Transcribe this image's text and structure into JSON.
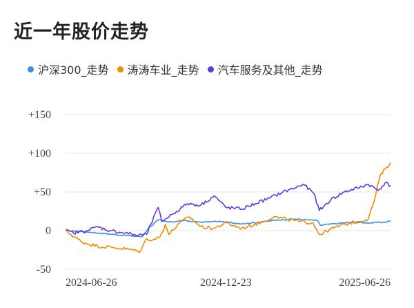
{
  "chart_data": {
    "type": "line",
    "title": "近一年股价走势",
    "legend_position": "top-left",
    "grid": true,
    "ylim": [
      -50,
      150
    ],
    "y_ticks": [
      "+150",
      "+100",
      "+50",
      "0",
      "-50"
    ],
    "y_tick_values": [
      150,
      100,
      50,
      0,
      -50
    ],
    "x_range": [
      "2024-06-26",
      "2025-06-26"
    ],
    "x_ticks": [
      "2024-06-26",
      "2024-12-23",
      "2025-06-26"
    ],
    "series": [
      {
        "name": "沪深300_走势",
        "color": "#3a8ee6",
        "points": [
          [
            "2024-06-26",
            0
          ],
          [
            "2024-07-15",
            -1
          ],
          [
            "2024-08-01",
            -3
          ],
          [
            "2024-08-20",
            -5
          ],
          [
            "2024-09-10",
            -7
          ],
          [
            "2024-09-20",
            -8
          ],
          [
            "2024-09-27",
            3
          ],
          [
            "2024-10-08",
            14
          ],
          [
            "2024-10-20",
            11
          ],
          [
            "2024-11-05",
            13
          ],
          [
            "2024-11-25",
            11
          ],
          [
            "2024-12-15",
            12
          ],
          [
            "2025-01-10",
            9
          ],
          [
            "2025-02-01",
            11
          ],
          [
            "2025-02-20",
            14
          ],
          [
            "2025-03-10",
            15
          ],
          [
            "2025-03-25",
            14
          ],
          [
            "2025-04-05",
            13
          ],
          [
            "2025-04-08",
            7
          ],
          [
            "2025-04-25",
            9
          ],
          [
            "2025-05-15",
            11
          ],
          [
            "2025-06-01",
            10
          ],
          [
            "2025-06-20",
            11
          ],
          [
            "2025-06-26",
            13
          ]
        ]
      },
      {
        "name": "涛涛车业_走势",
        "color": "#f28c00",
        "points": [
          [
            "2024-06-26",
            0
          ],
          [
            "2024-07-02",
            -5
          ],
          [
            "2024-07-15",
            -15
          ],
          [
            "2024-08-01",
            -20
          ],
          [
            "2024-08-20",
            -22
          ],
          [
            "2024-09-05",
            -24
          ],
          [
            "2024-09-18",
            -27
          ],
          [
            "2024-09-25",
            -10
          ],
          [
            "2024-10-02",
            -12
          ],
          [
            "2024-10-10",
            -8
          ],
          [
            "2024-10-16",
            8
          ],
          [
            "2024-10-20",
            -5
          ],
          [
            "2024-11-01",
            10
          ],
          [
            "2024-11-12",
            18
          ],
          [
            "2024-11-25",
            5
          ],
          [
            "2024-12-10",
            3
          ],
          [
            "2024-12-23",
            10
          ],
          [
            "2025-01-10",
            3
          ],
          [
            "2025-01-25",
            8
          ],
          [
            "2025-02-15",
            18
          ],
          [
            "2025-03-01",
            15
          ],
          [
            "2025-03-15",
            12
          ],
          [
            "2025-03-31",
            10
          ],
          [
            "2025-04-07",
            -5
          ],
          [
            "2025-04-20",
            2
          ],
          [
            "2025-05-05",
            8
          ],
          [
            "2025-05-20",
            12
          ],
          [
            "2025-06-01",
            15
          ],
          [
            "2025-06-08",
            40
          ],
          [
            "2025-06-14",
            70
          ],
          [
            "2025-06-20",
            80
          ],
          [
            "2025-06-26",
            88
          ]
        ]
      },
      {
        "name": "汽车服务及其他_走势",
        "color": "#5b3ce0",
        "points": [
          [
            "2024-06-26",
            0
          ],
          [
            "2024-07-05",
            -3
          ],
          [
            "2024-07-20",
            0
          ],
          [
            "2024-08-01",
            5
          ],
          [
            "2024-08-15",
            0
          ],
          [
            "2024-09-01",
            -3
          ],
          [
            "2024-09-15",
            -6
          ],
          [
            "2024-09-25",
            -5
          ],
          [
            "2024-10-08",
            30
          ],
          [
            "2024-10-12",
            12
          ],
          [
            "2024-10-25",
            22
          ],
          [
            "2024-11-10",
            35
          ],
          [
            "2024-11-25",
            33
          ],
          [
            "2024-12-10",
            45
          ],
          [
            "2024-12-23",
            30
          ],
          [
            "2025-01-10",
            28
          ],
          [
            "2025-01-25",
            35
          ],
          [
            "2025-02-10",
            42
          ],
          [
            "2025-02-25",
            50
          ],
          [
            "2025-03-10",
            55
          ],
          [
            "2025-03-20",
            60
          ],
          [
            "2025-04-01",
            48
          ],
          [
            "2025-04-07",
            26
          ],
          [
            "2025-04-20",
            40
          ],
          [
            "2025-05-05",
            50
          ],
          [
            "2025-05-20",
            55
          ],
          [
            "2025-06-01",
            60
          ],
          [
            "2025-06-12",
            52
          ],
          [
            "2025-06-20",
            62
          ],
          [
            "2025-06-26",
            58
          ]
        ]
      }
    ]
  }
}
